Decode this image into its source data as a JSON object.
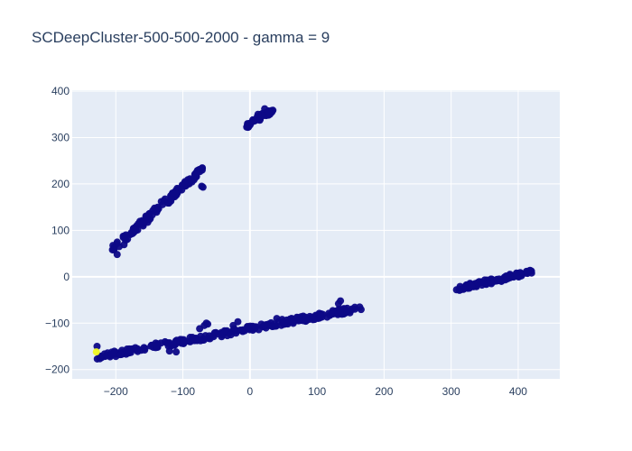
{
  "chart_data": {
    "type": "scatter",
    "title": "SCDeepCluster-500-500-2000 - gamma = 9",
    "xlabel": "",
    "ylabel": "",
    "xlim": [
      -265,
      462
    ],
    "ylim": [
      -220,
      402
    ],
    "x_ticks": [
      -200,
      -100,
      0,
      100,
      200,
      300,
      400
    ],
    "y_ticks": [
      -200,
      -100,
      0,
      100,
      200,
      300,
      400
    ],
    "x_tick_labels": [
      "−200",
      "−100",
      "0",
      "100",
      "200",
      "300",
      "400"
    ],
    "y_tick_labels": [
      "−200",
      "−100",
      "0",
      "100",
      "200",
      "300",
      "400"
    ],
    "grid": true,
    "colors": {
      "plot_bg": "#e5ecf6",
      "grid": "#ffffff",
      "text": "#2a3f5f",
      "point_main": "#0d0887",
      "point_outlier": "#f0f921"
    },
    "series": [
      {
        "color": "#0d0887",
        "segments": [
          {
            "from": [
              -202,
              60
            ],
            "to": [
              -72,
              232
            ],
            "count": 120,
            "spread": 7
          },
          {
            "from": [
              -225,
              -172
            ],
            "to": [
              165,
              -68
            ],
            "count": 260,
            "spread": 6
          },
          {
            "from": [
              -5,
              325
            ],
            "to": [
              35,
              360
            ],
            "count": 35,
            "spread": 5
          },
          {
            "from": [
              310,
              -25
            ],
            "to": [
              420,
              10
            ],
            "count": 90,
            "spread": 5
          }
        ],
        "points": [
          [
            -72,
            195
          ],
          [
            -70,
            193
          ],
          [
            -65,
            -100
          ],
          [
            -68,
            -105
          ],
          [
            -75,
            -112
          ],
          [
            -120,
            -160
          ],
          [
            -110,
            -162
          ],
          [
            -63,
            -102
          ],
          [
            -18,
            -97
          ],
          [
            -25,
            -105
          ],
          [
            40,
            -90
          ],
          [
            48,
            -92
          ],
          [
            135,
            -52
          ],
          [
            132,
            -58
          ],
          [
            145,
            -68
          ],
          [
            -228,
            -150
          ],
          [
            -198,
            48
          ],
          [
            -205,
            58
          ],
          [
            -195,
            65
          ],
          [
            -185,
            90
          ],
          [
            28,
            355
          ],
          [
            22,
            362
          ],
          [
            12,
            350
          ],
          [
            -3,
            322
          ],
          [
            0,
            330
          ],
          [
            312,
            -28
          ],
          [
            320,
            -22
          ],
          [
            415,
            12
          ],
          [
            420,
            8
          ],
          [
            360,
            -15
          ],
          [
            375,
            -10
          ]
        ]
      },
      {
        "color": "#f0f921",
        "points": [
          [
            -229,
            -162
          ]
        ]
      }
    ]
  }
}
